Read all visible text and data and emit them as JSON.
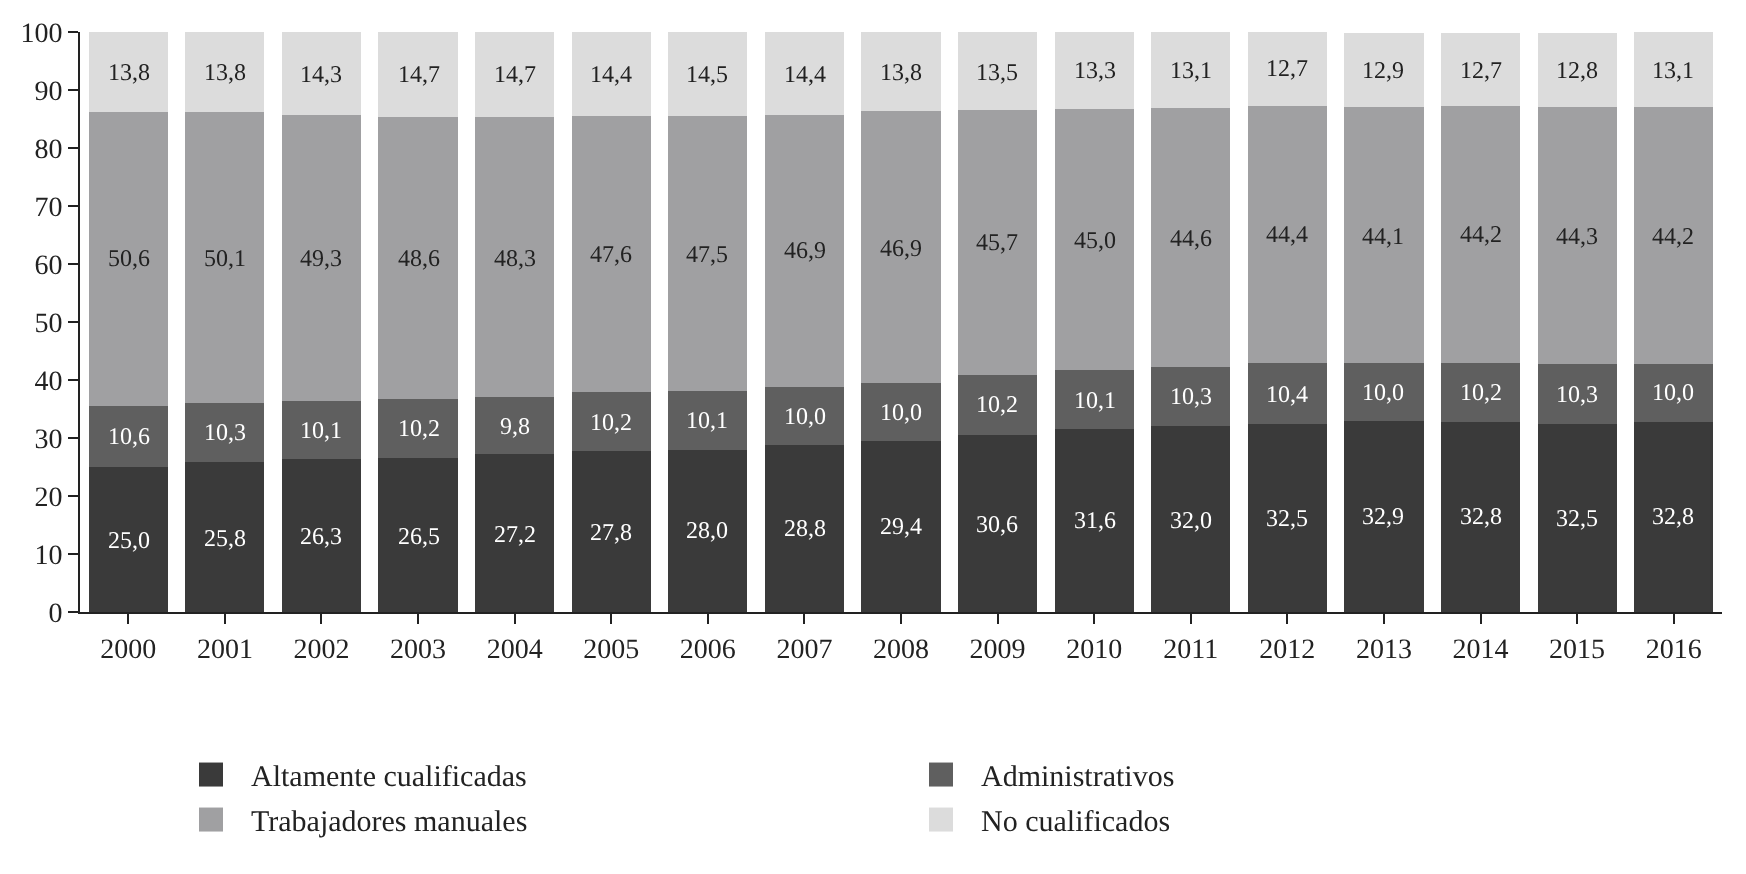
{
  "chart_data": {
    "type": "bar",
    "stacked": true,
    "categories": [
      "2000",
      "2001",
      "2002",
      "2003",
      "2004",
      "2005",
      "2006",
      "2007",
      "2008",
      "2009",
      "2010",
      "2011",
      "2012",
      "2013",
      "2014",
      "2015",
      "2016"
    ],
    "ylim": [
      0,
      100
    ],
    "yticks": [
      0,
      10,
      20,
      30,
      40,
      50,
      60,
      70,
      80,
      90,
      100
    ],
    "grid": false,
    "legend": "bottom",
    "series": [
      {
        "name": "Altamente cualificadas",
        "color": "#3a3a3a",
        "values": [
          25.0,
          25.8,
          26.3,
          26.5,
          27.2,
          27.8,
          28.0,
          28.8,
          29.4,
          30.6,
          31.6,
          32.0,
          32.5,
          32.9,
          32.8,
          32.5,
          32.8
        ],
        "value_labels": [
          "25,0",
          "25,8",
          "26,3",
          "26,5",
          "27,2",
          "27,8",
          "28,0",
          "28,8",
          "29,4",
          "30,6",
          "31,6",
          "32,0",
          "32,5",
          "32,9",
          "32,8",
          "32,5",
          "32,8"
        ]
      },
      {
        "name": "Administrativos",
        "color": "#5f5f5f",
        "values": [
          10.6,
          10.3,
          10.1,
          10.2,
          9.8,
          10.2,
          10.1,
          10.0,
          10.0,
          10.2,
          10.1,
          10.3,
          10.4,
          10.0,
          10.2,
          10.3,
          10.0
        ],
        "value_labels": [
          "10,6",
          "10,3",
          "10,1",
          "10,2",
          "9,8",
          "10,2",
          "10,1",
          "10,0",
          "10,0",
          "10,2",
          "10,1",
          "10,3",
          "10,4",
          "10,0",
          "10,2",
          "10,3",
          "10,0"
        ]
      },
      {
        "name": "Trabajadores manuales",
        "color": "#a0a0a2",
        "values": [
          50.6,
          50.1,
          49.3,
          48.6,
          48.3,
          47.6,
          47.5,
          46.9,
          46.9,
          45.7,
          45.0,
          44.6,
          44.4,
          44.1,
          44.2,
          44.3,
          44.2
        ],
        "value_labels": [
          "50,6",
          "50,1",
          "49,3",
          "48,6",
          "48,3",
          "47,6",
          "47,5",
          "46,9",
          "46,9",
          "45,7",
          "45,0",
          "44,6",
          "44,4",
          "44,1",
          "44,2",
          "44,3",
          "44,2"
        ]
      },
      {
        "name": "No cualificados",
        "color": "#dcdcdc",
        "values": [
          13.8,
          13.8,
          14.3,
          14.7,
          14.7,
          14.4,
          14.5,
          14.4,
          13.8,
          13.5,
          13.3,
          13.1,
          12.7,
          12.9,
          12.7,
          12.8,
          13.1
        ],
        "value_labels": [
          "13,8",
          "13,8",
          "14,3",
          "14,7",
          "14,7",
          "14,4",
          "14,5",
          "14,4",
          "13,8",
          "13,5",
          "13,3",
          "13,1",
          "12,7",
          "12,9",
          "12,7",
          "12,8",
          "13,1"
        ]
      }
    ]
  }
}
